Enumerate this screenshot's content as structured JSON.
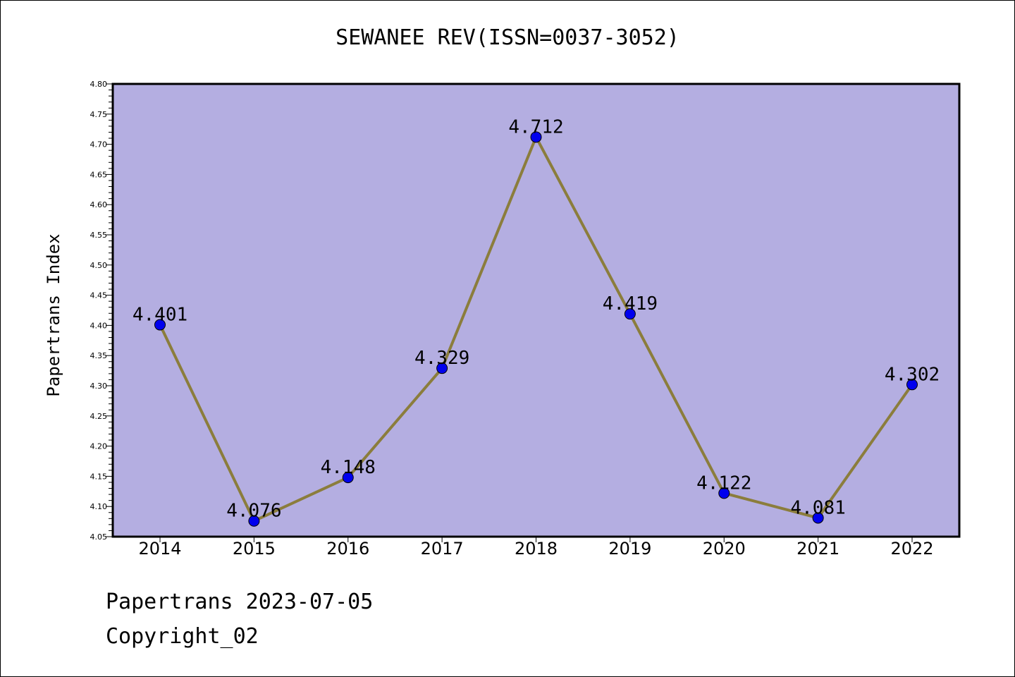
{
  "chart_data": {
    "type": "line",
    "title": "SEWANEE REV(ISSN=0037-3052)",
    "xlabel": "",
    "ylabel": "Papertrans Index",
    "categories": [
      "2014",
      "2015",
      "2016",
      "2017",
      "2018",
      "2019",
      "2020",
      "2021",
      "2022"
    ],
    "series": [
      {
        "values": [
          4.401,
          4.076,
          4.148,
          4.329,
          4.712,
          4.419,
          4.122,
          4.081,
          4.302
        ],
        "labels": [
          "4.401",
          "4.076",
          "4.148",
          "4.329",
          "4.712",
          "4.419",
          "4.122",
          "4.081",
          "4.302"
        ]
      }
    ],
    "ylim": [
      4.05,
      4.8
    ],
    "yticks": [
      "4.05",
      "4.10",
      "4.15",
      "4.20",
      "4.25",
      "4.30",
      "4.35",
      "4.40",
      "4.45",
      "4.50",
      "4.55",
      "4.60",
      "4.65",
      "4.70",
      "4.75",
      "4.80"
    ],
    "grid": false,
    "colors": {
      "plot_background": "#b4aee1",
      "line": "#8b7d3c",
      "marker": "#0000ee"
    }
  },
  "footer": {
    "line1": "Papertrans 2023-07-05",
    "line2": "Copyright_02"
  }
}
